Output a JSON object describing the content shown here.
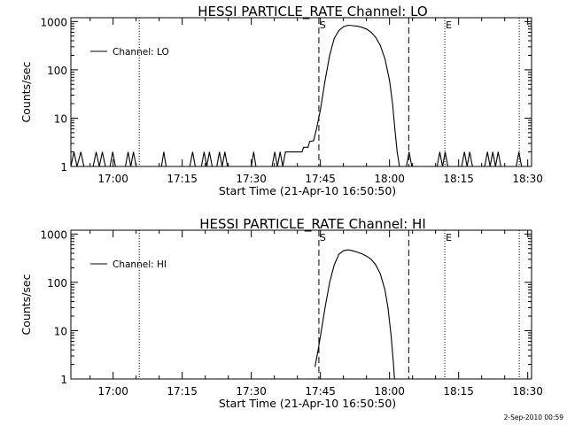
{
  "footer_timestamp": "2-Sep-2010 00:59",
  "chart_data": [
    {
      "type": "line",
      "title": "HESSI PARTICLE_RATE Channel: LO",
      "xlabel": "Start Time (21-Apr-10 16:50:50)",
      "ylabel": "Counts/sec",
      "yscale": "log",
      "ylim": [
        1,
        1200
      ],
      "xlim": [
        "16:50:50",
        "18:30:50"
      ],
      "xticks": [
        "17:00",
        "17:15",
        "17:30",
        "17:45",
        "18:00",
        "18:15",
        "18:30"
      ],
      "yticks": [
        "1",
        "10",
        "100",
        "1000"
      ],
      "legend": {
        "label": "Channel: LO",
        "position": "top-left"
      },
      "markers": [
        {
          "label": "S",
          "time": "17:44:40"
        },
        {
          "label": "E",
          "time": "18:12:00"
        }
      ],
      "dashed_lines": [
        "17:44:40",
        "18:04:10"
      ],
      "dotted_lines": [
        "17:05:40",
        "18:12:00",
        "18:28:10"
      ],
      "series": [
        {
          "name": "Channel: LO",
          "points": [
            [
              "16:50:50",
              1
            ],
            [
              "16:51:30",
              2
            ],
            [
              "16:52:10",
              1
            ],
            [
              "16:53:00",
              2
            ],
            [
              "16:53:40",
              1
            ],
            [
              "16:55:40",
              1
            ],
            [
              "16:56:20",
              2
            ],
            [
              "16:57:00",
              1
            ],
            [
              "16:57:40",
              2
            ],
            [
              "16:58:20",
              1
            ],
            [
              "16:59:20",
              1
            ],
            [
              "16:59:55",
              2
            ],
            [
              "17:00:30",
              1
            ],
            [
              "17:02:40",
              1
            ],
            [
              "17:03:15",
              2
            ],
            [
              "17:03:50",
              1
            ],
            [
              "17:04:25",
              2
            ],
            [
              "17:05:00",
              1
            ],
            [
              "17:10:30",
              1
            ],
            [
              "17:11:00",
              2
            ],
            [
              "17:11:30",
              1
            ],
            [
              "17:16:40",
              1
            ],
            [
              "17:17:15",
              2
            ],
            [
              "17:17:50",
              1
            ],
            [
              "17:19:10",
              1
            ],
            [
              "17:19:45",
              2
            ],
            [
              "17:20:20",
              1
            ],
            [
              "17:20:55",
              2
            ],
            [
              "17:21:30",
              1
            ],
            [
              "17:22:30",
              1
            ],
            [
              "17:23:05",
              2
            ],
            [
              "17:23:40",
              1
            ],
            [
              "17:24:15",
              2
            ],
            [
              "17:24:50",
              1
            ],
            [
              "17:30:00",
              1
            ],
            [
              "17:30:30",
              2
            ],
            [
              "17:31:00",
              1
            ],
            [
              "17:34:30",
              1
            ],
            [
              "17:35:05",
              2
            ],
            [
              "17:35:40",
              1
            ],
            [
              "17:36:15",
              2
            ],
            [
              "17:36:50",
              1
            ],
            [
              "17:37:25",
              2
            ],
            [
              "17:41:00",
              2
            ],
            [
              "17:41:20",
              2.5
            ],
            [
              "17:42:20",
              2.5
            ],
            [
              "17:42:40",
              3.3
            ],
            [
              "17:43:30",
              3.4
            ],
            [
              "17:44:10",
              6
            ],
            [
              "17:45:00",
              15
            ],
            [
              "17:46:00",
              60
            ],
            [
              "17:47:00",
              200
            ],
            [
              "17:48:00",
              450
            ],
            [
              "17:49:00",
              650
            ],
            [
              "17:50:00",
              780
            ],
            [
              "17:51:00",
              840
            ],
            [
              "17:52:00",
              820
            ],
            [
              "17:53:00",
              800
            ],
            [
              "17:54:00",
              760
            ],
            [
              "17:55:00",
              700
            ],
            [
              "17:56:00",
              600
            ],
            [
              "17:57:00",
              470
            ],
            [
              "17:58:00",
              320
            ],
            [
              "17:59:00",
              170
            ],
            [
              "18:00:00",
              60
            ],
            [
              "18:00:40",
              20
            ],
            [
              "18:01:10",
              6
            ],
            [
              "18:01:40",
              2
            ],
            [
              "18:02:10",
              1
            ],
            [
              "18:03:40",
              1
            ],
            [
              "18:04:15",
              2
            ],
            [
              "18:04:50",
              1
            ],
            [
              "18:10:20",
              1
            ],
            [
              "18:10:55",
              2
            ],
            [
              "18:11:30",
              1
            ],
            [
              "18:12:05",
              2
            ],
            [
              "18:12:40",
              1
            ],
            [
              "18:15:40",
              1
            ],
            [
              "18:16:15",
              2
            ],
            [
              "18:16:50",
              1
            ],
            [
              "18:17:25",
              2
            ],
            [
              "18:18:00",
              1
            ],
            [
              "18:20:40",
              1
            ],
            [
              "18:21:15",
              2
            ],
            [
              "18:21:50",
              1
            ],
            [
              "18:22:25",
              2
            ],
            [
              "18:23:00",
              1
            ],
            [
              "18:23:35",
              2
            ],
            [
              "18:24:10",
              1
            ],
            [
              "18:27:30",
              1
            ],
            [
              "18:28:05",
              2
            ],
            [
              "18:28:40",
              1
            ]
          ]
        }
      ]
    },
    {
      "type": "line",
      "title": "HESSI PARTICLE_RATE Channel: HI",
      "xlabel": "Start Time (21-Apr-10 16:50:50)",
      "ylabel": "Counts/sec",
      "yscale": "log",
      "ylim": [
        1,
        1200
      ],
      "xlim": [
        "16:50:50",
        "18:30:50"
      ],
      "xticks": [
        "17:00",
        "17:15",
        "17:30",
        "17:45",
        "18:00",
        "18:15",
        "18:30"
      ],
      "yticks": [
        "1",
        "10",
        "100",
        "1000"
      ],
      "legend": {
        "label": "Channel: HI",
        "position": "top-left"
      },
      "markers": [
        {
          "label": "S",
          "time": "17:44:40"
        },
        {
          "label": "E",
          "time": "18:12:00"
        }
      ],
      "dashed_lines": [
        "17:44:40",
        "18:04:10"
      ],
      "dotted_lines": [
        "17:05:40",
        "18:12:00",
        "18:28:10"
      ],
      "series": [
        {
          "name": "Channel: HI",
          "points": [
            [
              "17:43:50",
              1.8
            ],
            [
              "17:44:30",
              4
            ],
            [
              "17:45:20",
              12
            ],
            [
              "17:46:00",
              30
            ],
            [
              "17:47:00",
              100
            ],
            [
              "17:48:00",
              230
            ],
            [
              "17:49:00",
              380
            ],
            [
              "17:50:00",
              450
            ],
            [
              "17:51:00",
              470
            ],
            [
              "17:52:00",
              450
            ],
            [
              "17:53:00",
              420
            ],
            [
              "17:54:00",
              390
            ],
            [
              "17:55:00",
              350
            ],
            [
              "17:56:00",
              300
            ],
            [
              "17:57:00",
              230
            ],
            [
              "17:58:00",
              150
            ],
            [
              "17:59:00",
              70
            ],
            [
              "17:59:40",
              30
            ],
            [
              "18:00:20",
              8
            ],
            [
              "18:00:50",
              2.2
            ],
            [
              "18:01:05",
              1
            ]
          ]
        }
      ]
    }
  ]
}
